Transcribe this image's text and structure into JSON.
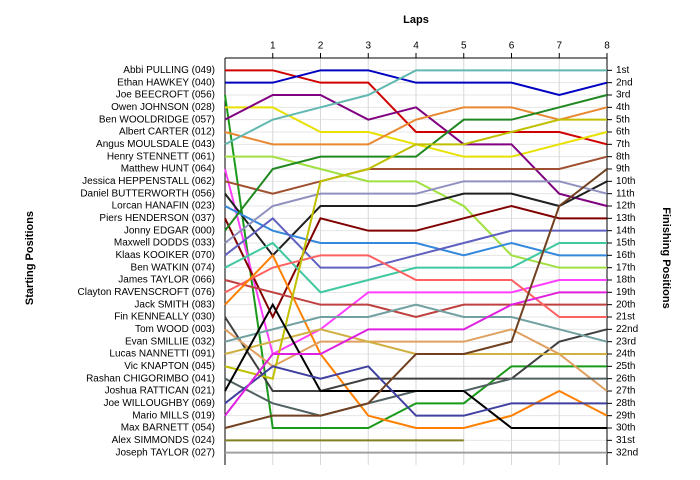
{
  "chart_data": {
    "type": "line",
    "x_label": "Laps",
    "y_label": "Starting Positions",
    "y2_label": "Finishing Positions",
    "x": [
      0,
      1,
      2,
      3,
      4,
      5,
      6,
      7,
      8
    ],
    "xlim": [
      0,
      8
    ],
    "xticks": [
      1,
      2,
      3,
      4,
      5,
      6,
      7,
      8
    ],
    "ylim": [
      33,
      0
    ],
    "y2lim": [
      33,
      0
    ],
    "grid": true,
    "y2ticks": [
      {
        "value": 1,
        "label": "1st"
      },
      {
        "value": 2,
        "label": "2nd"
      },
      {
        "value": 3,
        "label": "3rd"
      },
      {
        "value": 4,
        "label": "4th"
      },
      {
        "value": 5,
        "label": "5th"
      },
      {
        "value": 6,
        "label": "6th"
      },
      {
        "value": 7,
        "label": "7th"
      },
      {
        "value": 8,
        "label": "8th"
      },
      {
        "value": 9,
        "label": "9th"
      },
      {
        "value": 10,
        "label": "10th"
      },
      {
        "value": 11,
        "label": "11th"
      },
      {
        "value": 12,
        "label": "12th"
      },
      {
        "value": 13,
        "label": "13th"
      },
      {
        "value": 14,
        "label": "14th"
      },
      {
        "value": 15,
        "label": "15th"
      },
      {
        "value": 16,
        "label": "16th"
      },
      {
        "value": 17,
        "label": "17th"
      },
      {
        "value": 18,
        "label": "18th"
      },
      {
        "value": 19,
        "label": "19th"
      },
      {
        "value": 20,
        "label": "20th"
      },
      {
        "value": 21,
        "label": "21st"
      },
      {
        "value": 22,
        "label": "22nd"
      },
      {
        "value": 23,
        "label": "23rd"
      },
      {
        "value": 24,
        "label": "24th"
      },
      {
        "value": 25,
        "label": "25th"
      },
      {
        "value": 26,
        "label": "26th"
      },
      {
        "value": 27,
        "label": "27th"
      },
      {
        "value": 28,
        "label": "28th"
      },
      {
        "value": 29,
        "label": "29th"
      },
      {
        "value": 30,
        "label": "30th"
      },
      {
        "value": 31,
        "label": "31st"
      },
      {
        "value": 32,
        "label": "32nd"
      }
    ],
    "series": [
      {
        "name": "Abbi PULLING (049)",
        "color": "#d00000",
        "values": [
          1,
          1,
          2,
          2,
          6,
          6,
          6,
          6,
          7
        ]
      },
      {
        "name": "Ethan HAWKEY (040)",
        "color": "#0000c0",
        "values": [
          2,
          2,
          1,
          1,
          2,
          2,
          2,
          3,
          2
        ]
      },
      {
        "name": "Joe BEECROFT (056)",
        "color": "#1a9a1a",
        "values": [
          3,
          30,
          30,
          30,
          28,
          28,
          25,
          25,
          25
        ]
      },
      {
        "name": "Owen JOHNSON (028)",
        "color": "#e8e000",
        "values": [
          4,
          4,
          6,
          6,
          7,
          8,
          8,
          7,
          6
        ]
      },
      {
        "name": "Ben WOOLDRIDGE (057)",
        "color": "#800080",
        "values": [
          5,
          3,
          3,
          5,
          4,
          7,
          7,
          11,
          12
        ]
      },
      {
        "name": "Albert CARTER (012)",
        "color": "#e88830",
        "values": [
          6,
          7,
          7,
          7,
          5,
          4,
          4,
          5,
          4
        ]
      },
      {
        "name": "Angus MOULSDALE (043)",
        "color": "#60b8b0",
        "values": [
          7,
          5,
          4,
          3,
          1,
          1,
          1,
          1,
          1
        ]
      },
      {
        "name": "Henry STENNETT (061)",
        "color": "#a0e040",
        "values": [
          8,
          8,
          9,
          10,
          10,
          12,
          16,
          17,
          17
        ]
      },
      {
        "name": "Matthew HUNT (064)",
        "color": "#ff40ff",
        "values": [
          9,
          24,
          22,
          19,
          19,
          19,
          19,
          18,
          18
        ]
      },
      {
        "name": "Jessica HEPPENSTALL (062)",
        "color": "#a05030",
        "values": [
          10,
          11,
          10,
          9,
          9,
          9,
          9,
          9,
          8
        ]
      },
      {
        "name": "Daniel BUTTERWORTH (056)",
        "color": "#202020",
        "values": [
          11,
          16,
          12,
          12,
          12,
          11,
          11,
          12,
          10
        ]
      },
      {
        "name": "Lorcan HANAFIN (023)",
        "color": "#3388dd",
        "values": [
          12,
          14,
          15,
          15,
          15,
          16,
          15,
          16,
          16
        ]
      },
      {
        "name": "Piers HENDERSON (037)",
        "color": "#800000",
        "values": [
          13,
          21,
          13,
          14,
          14,
          13,
          12,
          13,
          13
        ]
      },
      {
        "name": "Jonny EDGAR (000)",
        "color": "#208820",
        "values": [
          14,
          9,
          8,
          8,
          8,
          5,
          5,
          4,
          3
        ]
      },
      {
        "name": "Maxwell DODDS (033)",
        "color": "#9090c0",
        "values": [
          15,
          12,
          11,
          11,
          11,
          10,
          10,
          10,
          11
        ]
      },
      {
        "name": "Klaas KOOIKER (070)",
        "color": "#6060c0",
        "values": [
          16,
          13,
          17,
          17,
          16,
          15,
          14,
          14,
          14
        ]
      },
      {
        "name": "Ben WATKIN (074)",
        "color": "#40c8a0",
        "values": [
          17,
          15,
          19,
          18,
          17,
          17,
          17,
          15,
          15
        ]
      },
      {
        "name": "James TAYLOR (066)",
        "color": "#c04040",
        "values": [
          18,
          19,
          20,
          20,
          21,
          20,
          20,
          20,
          20
        ]
      },
      {
        "name": "Clayton RAVENSCROFT (076)",
        "color": "#ff6060",
        "values": [
          19,
          17,
          16,
          16,
          18,
          18,
          18,
          21,
          21
        ]
      },
      {
        "name": "Jack SMITH (083)",
        "color": "#ff8000",
        "values": [
          20,
          16,
          24,
          29,
          30,
          30,
          29,
          27,
          29
        ]
      },
      {
        "name": "Fin KENNEALLY (030)",
        "color": "#404040",
        "values": [
          21,
          27,
          27,
          26,
          26,
          26,
          26,
          23,
          22
        ]
      },
      {
        "name": "Tom WOOD (003)",
        "color": "#e0a060",
        "values": [
          22,
          25,
          23,
          23,
          23,
          23,
          22,
          24,
          27
        ]
      },
      {
        "name": "Evan SMILLIE (032)",
        "color": "#70a0a0",
        "values": [
          23,
          22,
          21,
          21,
          20,
          21,
          21,
          22,
          23
        ]
      },
      {
        "name": "Lucas NANNETTI (091)",
        "color": "#d0b040",
        "values": [
          24,
          23,
          22,
          23,
          24,
          24,
          24,
          24,
          24
        ]
      },
      {
        "name": "Vic KNAPTON (045)",
        "color": "#c0c000",
        "values": [
          25,
          26,
          10,
          9,
          7,
          7,
          6,
          5,
          5
        ]
      },
      {
        "name": "Rashan CHIGORIMBO (041)",
        "color": "#506060",
        "values": [
          26,
          28,
          29,
          28,
          27,
          27,
          26,
          26,
          26
        ]
      },
      {
        "name": "Joshua RATTICAN (021)",
        "color": "#000000",
        "values": [
          27,
          20,
          27,
          27,
          27,
          27,
          30,
          30,
          30
        ]
      },
      {
        "name": "Joe WILLOUGHBY (069)",
        "color": "#4040a0",
        "values": [
          28,
          25,
          26,
          25,
          29,
          29,
          28,
          28,
          28
        ]
      },
      {
        "name": "Mario MILLS (019)",
        "color": "#e020e0",
        "values": [
          29,
          24,
          24,
          22,
          22,
          22,
          20,
          19,
          19
        ]
      },
      {
        "name": "Max BARNETT (054)",
        "color": "#704020",
        "values": [
          30,
          29,
          29,
          28,
          24,
          24,
          23,
          12,
          9
        ]
      },
      {
        "name": "Alex SIMMONDS (024)",
        "color": "#808020",
        "values": [
          31,
          31,
          31,
          31,
          31,
          31,
          null,
          null,
          null
        ]
      },
      {
        "name": "Joseph TAYLOR (027)",
        "color": "#a0a0a0",
        "values": [
          32,
          32,
          32,
          32,
          32,
          32,
          32,
          32,
          32
        ]
      }
    ]
  }
}
